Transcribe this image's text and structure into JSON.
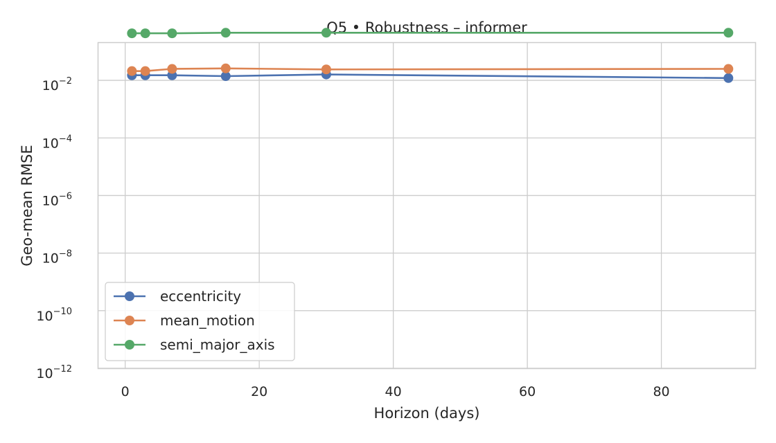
{
  "chart_data": {
    "type": "line",
    "title": "Q5 • Robustness – informer",
    "xlabel": "Horizon (days)",
    "ylabel": "Geo-mean RMSE",
    "yscale": "log",
    "xlim": [
      -4,
      94
    ],
    "ylim_exponent": [
      -12,
      -0.7
    ],
    "x_ticks": [
      0,
      20,
      40,
      60,
      80
    ],
    "y_tick_exponents": [
      -12,
      -10,
      -8,
      -6,
      -4,
      -2
    ],
    "grid": true,
    "legend_position": "lower-left",
    "x": [
      1,
      3,
      7,
      15,
      30,
      90
    ],
    "series": [
      {
        "name": "eccentricity",
        "color": "#4c72b0",
        "values": [
          0.015,
          0.015,
          0.015,
          0.014,
          0.016,
          0.012
        ]
      },
      {
        "name": "mean_motion",
        "color": "#dd8452",
        "values": [
          0.021,
          0.021,
          0.025,
          0.026,
          0.024,
          0.025
        ]
      },
      {
        "name": "semi_major_axis",
        "color": "#55a868",
        "values": [
          0.43,
          0.43,
          0.43,
          0.45,
          0.45,
          0.45
        ]
      }
    ]
  }
}
